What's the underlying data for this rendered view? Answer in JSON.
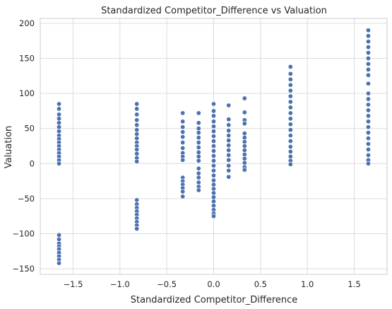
{
  "chart_data": {
    "type": "scatter",
    "title": "Standardized Competitor_Difference vs Valuation",
    "xlabel": "Standardized Competitor_Difference",
    "ylabel": "Valuation",
    "xlim": [
      -1.85,
      1.85
    ],
    "ylim": [
      -158,
      207
    ],
    "xticks": [
      -1.5,
      -1.0,
      -0.5,
      0.0,
      0.5,
      1.0,
      1.5
    ],
    "xtick_labels": [
      "−1.5",
      "−1.0",
      "−0.5",
      "0.0",
      "0.5",
      "1.0",
      "1.5"
    ],
    "yticks": [
      -150,
      -100,
      -50,
      0,
      50,
      100,
      150,
      200
    ],
    "ytick_labels": [
      "−150",
      "−100",
      "−50",
      "0",
      "50",
      "100",
      "150",
      "200"
    ],
    "grid": true,
    "legend": "none",
    "colors": {
      "point": "#4c72b0",
      "point_edge": "#ffffff",
      "grid": "#dcdcdc",
      "spine": "#cccccc",
      "background": "#ffffff"
    },
    "points": [
      {
        "x": -1.65,
        "y": 85
      },
      {
        "x": -1.65,
        "y": 78
      },
      {
        "x": -1.65,
        "y": 70
      },
      {
        "x": -1.65,
        "y": 64
      },
      {
        "x": -1.65,
        "y": 58
      },
      {
        "x": -1.65,
        "y": 52
      },
      {
        "x": -1.65,
        "y": 46
      },
      {
        "x": -1.65,
        "y": 40
      },
      {
        "x": -1.65,
        "y": 35
      },
      {
        "x": -1.65,
        "y": 30
      },
      {
        "x": -1.65,
        "y": 25
      },
      {
        "x": -1.65,
        "y": 20
      },
      {
        "x": -1.65,
        "y": 15
      },
      {
        "x": -1.65,
        "y": 10
      },
      {
        "x": -1.65,
        "y": 5
      },
      {
        "x": -1.65,
        "y": 0
      },
      {
        "x": -1.65,
        "y": -102
      },
      {
        "x": -1.65,
        "y": -108
      },
      {
        "x": -1.65,
        "y": -114
      },
      {
        "x": -1.65,
        "y": -118
      },
      {
        "x": -1.65,
        "y": -122
      },
      {
        "x": -1.65,
        "y": -127
      },
      {
        "x": -1.65,
        "y": -132
      },
      {
        "x": -1.65,
        "y": -137
      },
      {
        "x": -1.65,
        "y": -142
      },
      {
        "x": -0.82,
        "y": 85
      },
      {
        "x": -0.82,
        "y": 78
      },
      {
        "x": -0.82,
        "y": 70
      },
      {
        "x": -0.82,
        "y": 62
      },
      {
        "x": -0.82,
        "y": 55
      },
      {
        "x": -0.82,
        "y": 48
      },
      {
        "x": -0.82,
        "y": 42
      },
      {
        "x": -0.82,
        "y": 36
      },
      {
        "x": -0.82,
        "y": 30
      },
      {
        "x": -0.82,
        "y": 25
      },
      {
        "x": -0.82,
        "y": 20
      },
      {
        "x": -0.82,
        "y": 14
      },
      {
        "x": -0.82,
        "y": 8
      },
      {
        "x": -0.82,
        "y": 3
      },
      {
        "x": -0.82,
        "y": -52
      },
      {
        "x": -0.82,
        "y": -58
      },
      {
        "x": -0.82,
        "y": -63
      },
      {
        "x": -0.82,
        "y": -68
      },
      {
        "x": -0.82,
        "y": -73
      },
      {
        "x": -0.82,
        "y": -78
      },
      {
        "x": -0.82,
        "y": -83
      },
      {
        "x": -0.82,
        "y": -88
      },
      {
        "x": -0.82,
        "y": -93
      },
      {
        "x": -0.33,
        "y": 72
      },
      {
        "x": -0.33,
        "y": 60
      },
      {
        "x": -0.33,
        "y": 52
      },
      {
        "x": -0.33,
        "y": 45
      },
      {
        "x": -0.33,
        "y": 38
      },
      {
        "x": -0.33,
        "y": 30
      },
      {
        "x": -0.33,
        "y": 22
      },
      {
        "x": -0.33,
        "y": 15
      },
      {
        "x": -0.33,
        "y": 10
      },
      {
        "x": -0.33,
        "y": 5
      },
      {
        "x": -0.33,
        "y": -20
      },
      {
        "x": -0.33,
        "y": -25
      },
      {
        "x": -0.33,
        "y": -30
      },
      {
        "x": -0.33,
        "y": -35
      },
      {
        "x": -0.33,
        "y": -40
      },
      {
        "x": -0.33,
        "y": -47
      },
      {
        "x": -0.16,
        "y": 72
      },
      {
        "x": -0.16,
        "y": 58
      },
      {
        "x": -0.16,
        "y": 50
      },
      {
        "x": -0.16,
        "y": 44
      },
      {
        "x": -0.16,
        "y": 37
      },
      {
        "x": -0.16,
        "y": 30
      },
      {
        "x": -0.16,
        "y": 23
      },
      {
        "x": -0.16,
        "y": 16
      },
      {
        "x": -0.16,
        "y": 10
      },
      {
        "x": -0.16,
        "y": 4
      },
      {
        "x": -0.16,
        "y": -7
      },
      {
        "x": -0.16,
        "y": -14
      },
      {
        "x": -0.16,
        "y": -20
      },
      {
        "x": -0.16,
        "y": -27
      },
      {
        "x": -0.16,
        "y": -33
      },
      {
        "x": -0.16,
        "y": -38
      },
      {
        "x": 0.0,
        "y": 85
      },
      {
        "x": 0.0,
        "y": 75
      },
      {
        "x": 0.0,
        "y": 68
      },
      {
        "x": 0.0,
        "y": 60
      },
      {
        "x": 0.0,
        "y": 53
      },
      {
        "x": 0.0,
        "y": 46
      },
      {
        "x": 0.0,
        "y": 39
      },
      {
        "x": 0.0,
        "y": 32
      },
      {
        "x": 0.0,
        "y": 25
      },
      {
        "x": 0.0,
        "y": 18
      },
      {
        "x": 0.0,
        "y": 11
      },
      {
        "x": 0.0,
        "y": 4
      },
      {
        "x": 0.0,
        "y": -3
      },
      {
        "x": 0.0,
        "y": -10
      },
      {
        "x": 0.0,
        "y": -17
      },
      {
        "x": 0.0,
        "y": -24
      },
      {
        "x": 0.0,
        "y": -30
      },
      {
        "x": 0.0,
        "y": -36
      },
      {
        "x": 0.0,
        "y": -42
      },
      {
        "x": 0.0,
        "y": -48
      },
      {
        "x": 0.0,
        "y": -54
      },
      {
        "x": 0.0,
        "y": -60
      },
      {
        "x": 0.0,
        "y": -66
      },
      {
        "x": 0.0,
        "y": -71
      },
      {
        "x": 0.0,
        "y": -75
      },
      {
        "x": 0.16,
        "y": 83
      },
      {
        "x": 0.16,
        "y": 63
      },
      {
        "x": 0.16,
        "y": 55
      },
      {
        "x": 0.16,
        "y": 47
      },
      {
        "x": 0.16,
        "y": 40
      },
      {
        "x": 0.16,
        "y": 33
      },
      {
        "x": 0.16,
        "y": 26
      },
      {
        "x": 0.16,
        "y": 19
      },
      {
        "x": 0.16,
        "y": 12
      },
      {
        "x": 0.16,
        "y": 5
      },
      {
        "x": 0.16,
        "y": -3
      },
      {
        "x": 0.16,
        "y": -10
      },
      {
        "x": 0.16,
        "y": -19
      },
      {
        "x": 0.33,
        "y": 93
      },
      {
        "x": 0.33,
        "y": 73
      },
      {
        "x": 0.33,
        "y": 62
      },
      {
        "x": 0.33,
        "y": 57
      },
      {
        "x": 0.33,
        "y": 43
      },
      {
        "x": 0.33,
        "y": 37
      },
      {
        "x": 0.33,
        "y": 31
      },
      {
        "x": 0.33,
        "y": 25
      },
      {
        "x": 0.33,
        "y": 19
      },
      {
        "x": 0.33,
        "y": 13
      },
      {
        "x": 0.33,
        "y": 7
      },
      {
        "x": 0.33,
        "y": 1
      },
      {
        "x": 0.33,
        "y": -5
      },
      {
        "x": 0.33,
        "y": -9
      },
      {
        "x": 0.82,
        "y": 138
      },
      {
        "x": 0.82,
        "y": 128
      },
      {
        "x": 0.82,
        "y": 120
      },
      {
        "x": 0.82,
        "y": 112
      },
      {
        "x": 0.82,
        "y": 104
      },
      {
        "x": 0.82,
        "y": 96
      },
      {
        "x": 0.82,
        "y": 88
      },
      {
        "x": 0.82,
        "y": 80
      },
      {
        "x": 0.82,
        "y": 72
      },
      {
        "x": 0.82,
        "y": 64
      },
      {
        "x": 0.82,
        "y": 56
      },
      {
        "x": 0.82,
        "y": 48
      },
      {
        "x": 0.82,
        "y": 40
      },
      {
        "x": 0.82,
        "y": 32
      },
      {
        "x": 0.82,
        "y": 24
      },
      {
        "x": 0.82,
        "y": 17
      },
      {
        "x": 0.82,
        "y": 10
      },
      {
        "x": 0.82,
        "y": 4
      },
      {
        "x": 0.82,
        "y": -1
      },
      {
        "x": 1.65,
        "y": 190
      },
      {
        "x": 1.65,
        "y": 182
      },
      {
        "x": 1.65,
        "y": 174
      },
      {
        "x": 1.65,
        "y": 166
      },
      {
        "x": 1.65,
        "y": 158
      },
      {
        "x": 1.65,
        "y": 150
      },
      {
        "x": 1.65,
        "y": 142
      },
      {
        "x": 1.65,
        "y": 134
      },
      {
        "x": 1.65,
        "y": 126
      },
      {
        "x": 1.65,
        "y": 114
      },
      {
        "x": 1.65,
        "y": 100
      },
      {
        "x": 1.65,
        "y": 92
      },
      {
        "x": 1.65,
        "y": 84
      },
      {
        "x": 1.65,
        "y": 76
      },
      {
        "x": 1.65,
        "y": 68
      },
      {
        "x": 1.65,
        "y": 60
      },
      {
        "x": 1.65,
        "y": 52
      },
      {
        "x": 1.65,
        "y": 44
      },
      {
        "x": 1.65,
        "y": 36
      },
      {
        "x": 1.65,
        "y": 28
      },
      {
        "x": 1.65,
        "y": 20
      },
      {
        "x": 1.65,
        "y": 12
      },
      {
        "x": 1.65,
        "y": 5
      },
      {
        "x": 1.65,
        "y": 0
      }
    ]
  }
}
